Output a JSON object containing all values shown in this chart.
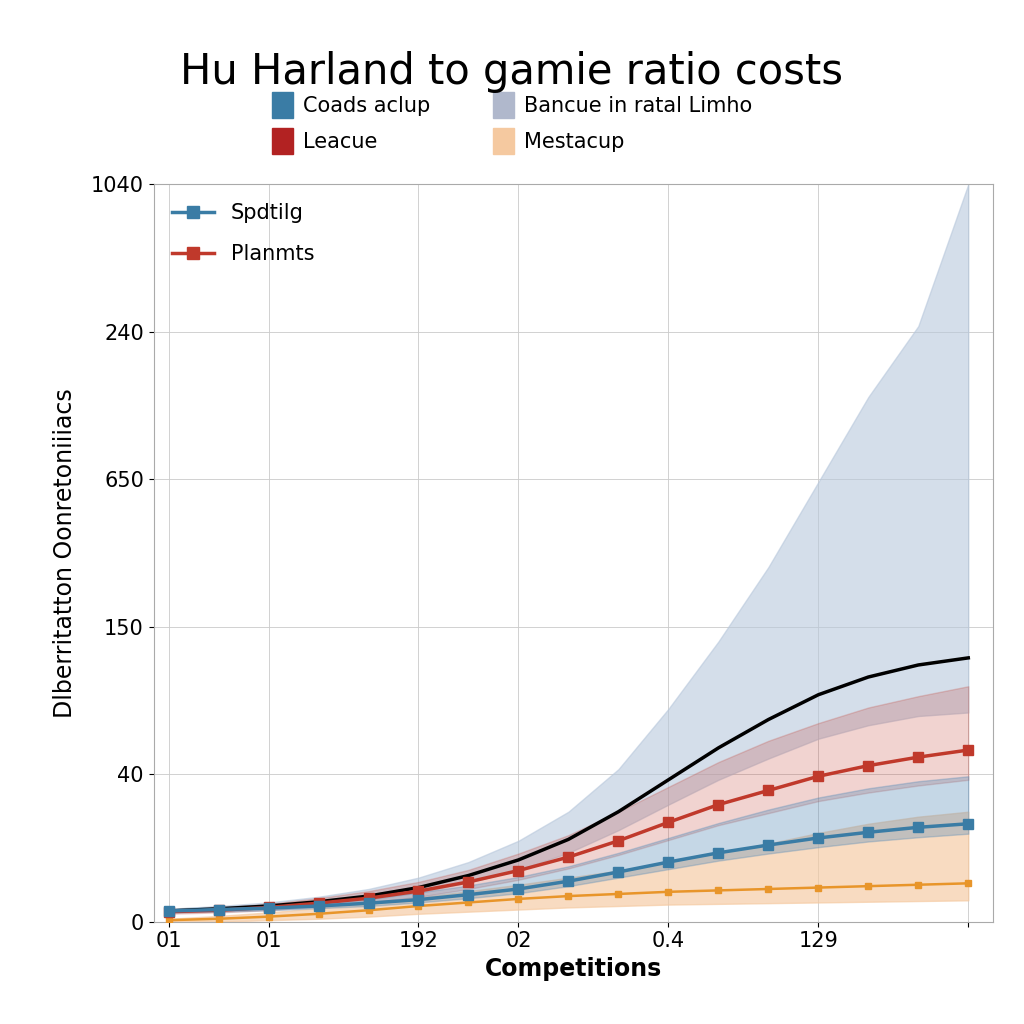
{
  "title": "Hu Harland to gamie ratio costs",
  "xlabel": "Competitions",
  "ylabel": "Dlberritatton Oonretoniiiacs",
  "line1_label": "Spdtilg",
  "line1_color": "#3a7ca5",
  "line2_label": "Planmts",
  "line2_color": "#c0392b",
  "x_values": [
    0,
    1,
    2,
    3,
    4,
    5,
    6,
    7,
    8,
    9,
    10,
    11,
    12,
    13,
    14,
    15,
    16
  ],
  "line1_y": [
    15,
    17,
    19,
    22,
    26,
    31,
    38,
    46,
    57,
    70,
    84,
    97,
    108,
    118,
    126,
    133,
    138
  ],
  "line1_lower": [
    13,
    14,
    16,
    19,
    22,
    27,
    33,
    40,
    50,
    62,
    74,
    86,
    96,
    105,
    113,
    119,
    124
  ],
  "line1_upper": [
    18,
    21,
    24,
    28,
    34,
    41,
    51,
    63,
    78,
    97,
    118,
    139,
    158,
    175,
    188,
    198,
    205
  ],
  "line2_y": [
    14,
    16,
    20,
    26,
    33,
    43,
    56,
    72,
    91,
    114,
    140,
    165,
    185,
    205,
    220,
    232,
    242
  ],
  "line2_lower": [
    11,
    13,
    16,
    21,
    27,
    35,
    46,
    59,
    75,
    94,
    115,
    136,
    153,
    170,
    182,
    192,
    200
  ],
  "line2_upper": [
    17,
    20,
    25,
    33,
    43,
    56,
    73,
    96,
    122,
    155,
    190,
    225,
    255,
    280,
    302,
    318,
    332
  ],
  "black_y": [
    15,
    18,
    22,
    28,
    36,
    48,
    65,
    87,
    116,
    155,
    200,
    245,
    285,
    320,
    345,
    362,
    372
  ],
  "black_lower": [
    13,
    15,
    19,
    24,
    31,
    41,
    55,
    73,
    97,
    129,
    165,
    200,
    230,
    258,
    277,
    290,
    295
  ],
  "black_upper": [
    18,
    22,
    27,
    35,
    46,
    62,
    84,
    114,
    155,
    215,
    300,
    395,
    500,
    620,
    740,
    840,
    1040
  ],
  "orange_y": [
    2,
    4,
    7,
    11,
    16,
    22,
    27,
    32,
    36,
    39,
    42,
    44,
    46,
    48,
    50,
    52,
    54
  ],
  "orange_lower": [
    0,
    0,
    2,
    4,
    7,
    11,
    14,
    17,
    20,
    22,
    24,
    25,
    26,
    27,
    28,
    29,
    30
  ],
  "orange_upper": [
    4,
    8,
    13,
    19,
    26,
    34,
    43,
    52,
    62,
    72,
    84,
    97,
    110,
    125,
    138,
    148,
    155
  ],
  "xtick_positions": [
    0,
    2,
    5,
    7,
    10,
    13,
    16
  ],
  "xtick_labels": [
    "01",
    "01",
    "192",
    "02",
    "0.4",
    "129",
    ""
  ],
  "ytick_positions": [
    0,
    1,
    2,
    3,
    4,
    5
  ],
  "ytick_labels": [
    "0",
    "40",
    "150",
    "650",
    "240",
    "1040"
  ],
  "ylim": [
    0,
    5
  ],
  "xlim": [
    -0.3,
    16.5
  ],
  "background_color": "#ffffff",
  "grid_color": "#cccccc",
  "title_fontsize": 30,
  "axis_label_fontsize": 17,
  "tick_fontsize": 15,
  "legend_fontsize": 15,
  "patch1_color": "#3a7ca5",
  "patch2_color": "#b22222",
  "patch3_color": "#b0b8cc",
  "patch4_color": "#f5c9a0",
  "patch1_label": "Coads aclup",
  "patch2_label": "Leacue",
  "patch3_label": "Bancue in ratal Limho",
  "patch4_label": "Mestacup"
}
